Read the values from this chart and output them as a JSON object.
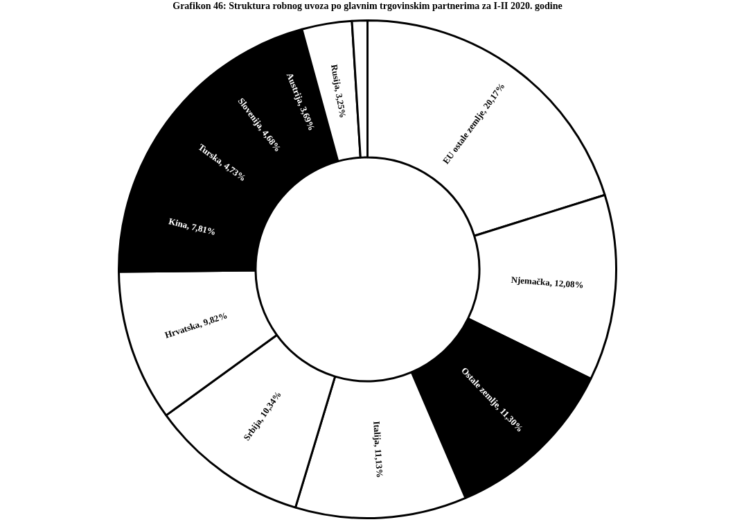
{
  "chart_data": {
    "type": "donut",
    "title": "Grafikon 46: Struktura robnog uvoza po glavnim trgovinskim partnerima za I-II 2020. godine",
    "categories": [
      "EU ostale zemlje",
      "Njemačka",
      "Ostale zemlje",
      "Italija",
      "Srbija",
      "Hrvatska",
      "Kina",
      "Turska",
      "Slovenija",
      "Austrija",
      "Rusija",
      null
    ],
    "values": [
      20.17,
      12.08,
      11.3,
      11.13,
      10.34,
      9.82,
      7.81,
      4.73,
      4.68,
      3.69,
      3.25,
      1.0
    ],
    "value_labels": [
      "20,17%",
      "12,08%",
      "11,30%",
      "11,13%",
      "10,34%",
      "9,82%",
      "7,81%",
      "4,73%",
      "4,68%",
      "3,69%",
      "3,25%",
      null
    ],
    "colors": [
      "#ffffff",
      "#ffffff",
      "#000000",
      "#ffffff",
      "#ffffff",
      "#ffffff",
      "#000000",
      "#000000",
      "#000000",
      "#000000",
      "#ffffff",
      "#ffffff"
    ],
    "legend": false
  }
}
